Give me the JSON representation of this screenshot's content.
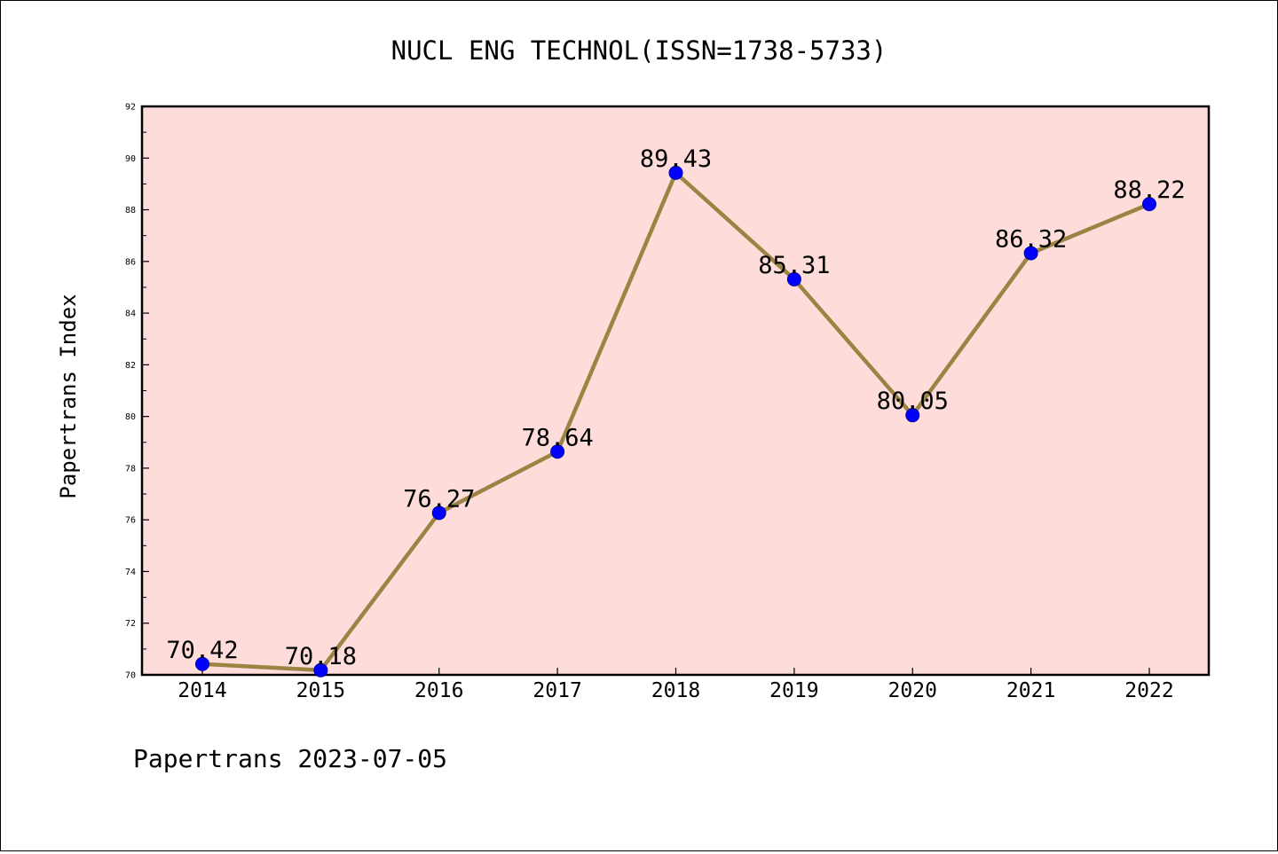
{
  "footer": {
    "credit": "Papertrans 2023-07-05"
  },
  "colors": {
    "plot_background": "#fddcda",
    "line": "#9b8443",
    "marker": "#0000ff",
    "marker_edge": "#0000aa",
    "axis": "#000000"
  },
  "chart_data": {
    "type": "line",
    "title": "NUCL ENG TECHNOL(ISSN=1738-5733)",
    "xlabel": "",
    "ylabel": "Papertrans Index",
    "x": [
      "2014",
      "2015",
      "2016",
      "2017",
      "2018",
      "2019",
      "2020",
      "2021",
      "2022"
    ],
    "series": [
      {
        "values": [
          70.42,
          70.18,
          76.27,
          78.64,
          89.43,
          85.31,
          80.05,
          86.32,
          88.22
        ],
        "labels": [
          "70.42",
          "70.18",
          "76.27",
          "78.64",
          "89.43",
          "85.31",
          "80.05",
          "86.32",
          "88.22"
        ]
      }
    ],
    "ylim": [
      70,
      92
    ],
    "yticks": [
      "70",
      "72",
      "74",
      "76",
      "78",
      "80",
      "82",
      "84",
      "86",
      "88",
      "90",
      "92"
    ],
    "grid": false,
    "legend": "none"
  }
}
